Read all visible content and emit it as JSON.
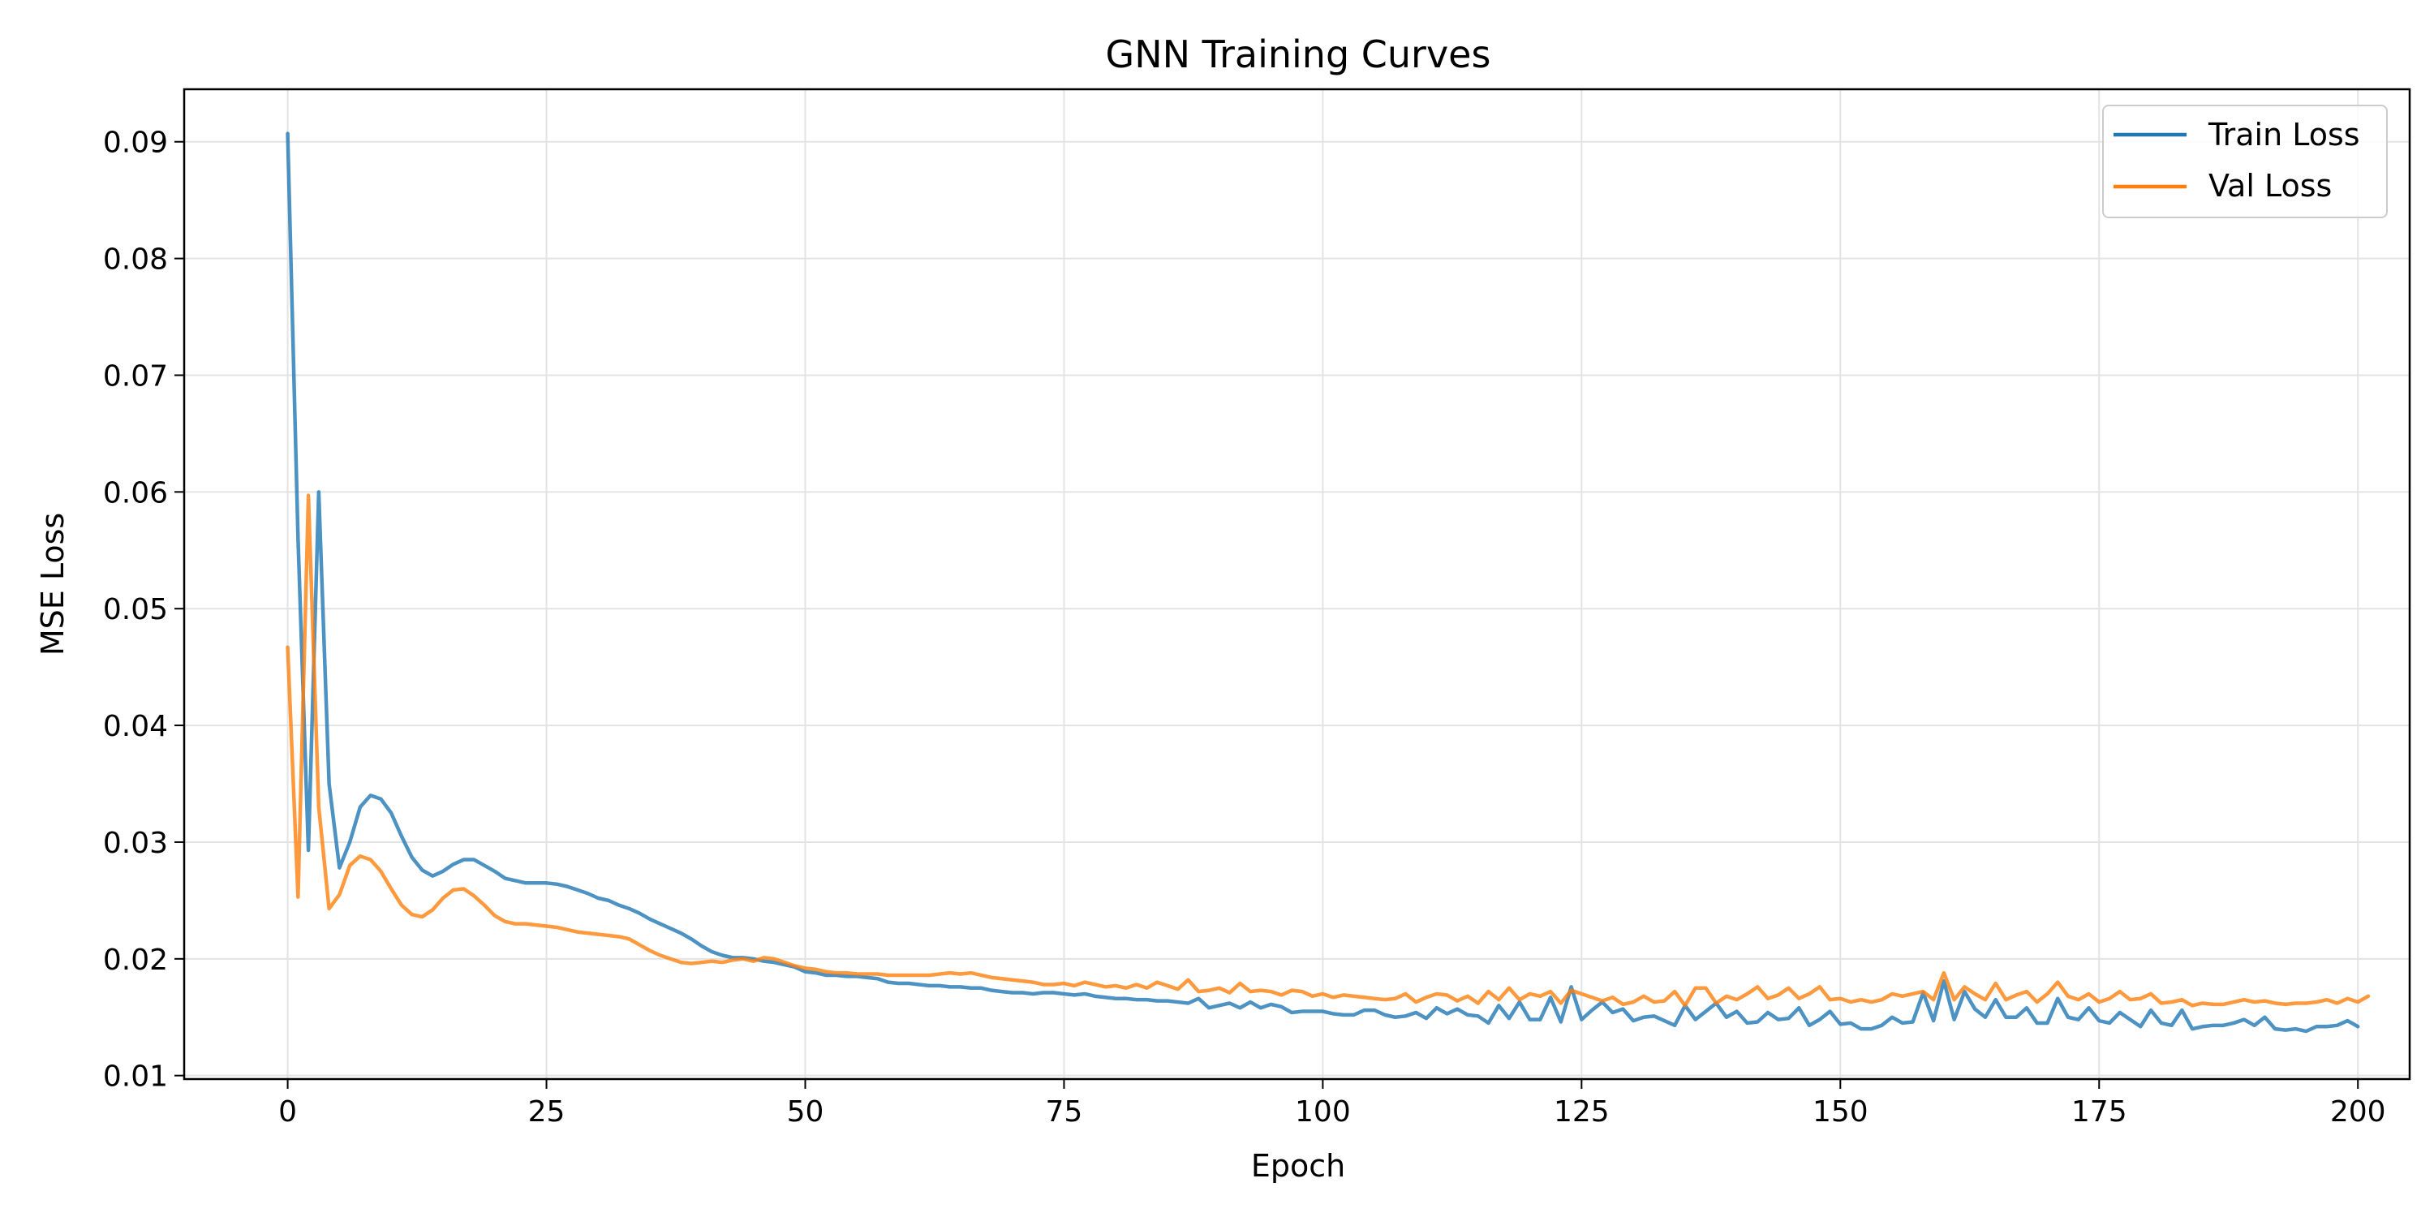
{
  "chart_data": {
    "type": "line",
    "title": "GNN Training Curves",
    "xlabel": "Epoch",
    "ylabel": "MSE Loss",
    "xlim": [
      -10,
      205
    ],
    "ylim": [
      0.0097,
      0.0945
    ],
    "xticks": [
      0,
      25,
      50,
      75,
      100,
      125,
      150,
      175,
      200
    ],
    "yticks": [
      0.01,
      0.02,
      0.03,
      0.04,
      0.05,
      0.06,
      0.07,
      0.08,
      0.09
    ],
    "ytick_labels": [
      "0.01",
      "0.02",
      "0.03",
      "0.04",
      "0.05",
      "0.06",
      "0.07",
      "0.08",
      "0.09"
    ],
    "grid": true,
    "legend_position": "top-right",
    "series": [
      {
        "name": "Train Loss",
        "color": "#1f77b4",
        "x_start": 0,
        "values": [
          0.0907,
          0.056,
          0.0293,
          0.06,
          0.035,
          0.0278,
          0.03,
          0.033,
          0.034,
          0.0337,
          0.0325,
          0.0305,
          0.0287,
          0.0276,
          0.0271,
          0.0275,
          0.0281,
          0.0285,
          0.0285,
          0.028,
          0.0275,
          0.0269,
          0.0267,
          0.0265,
          0.0265,
          0.0265,
          0.0264,
          0.0262,
          0.0259,
          0.0256,
          0.0252,
          0.025,
          0.0246,
          0.0243,
          0.0239,
          0.0234,
          0.023,
          0.0226,
          0.0222,
          0.0217,
          0.0211,
          0.0206,
          0.0203,
          0.0201,
          0.0201,
          0.02,
          0.0198,
          0.0197,
          0.0195,
          0.0193,
          0.0189,
          0.0188,
          0.0186,
          0.0186,
          0.0185,
          0.0185,
          0.0184,
          0.0183,
          0.018,
          0.0179,
          0.0179,
          0.0178,
          0.0177,
          0.0177,
          0.0176,
          0.0176,
          0.0175,
          0.0175,
          0.0173,
          0.0172,
          0.0171,
          0.0171,
          0.017,
          0.0171,
          0.0171,
          0.017,
          0.0169,
          0.017,
          0.0168,
          0.0167,
          0.0166,
          0.0166,
          0.0165,
          0.0165,
          0.0164,
          0.0164,
          0.0163,
          0.0162,
          0.0166,
          0.0158,
          0.016,
          0.0162,
          0.0158,
          0.0163,
          0.0158,
          0.0161,
          0.0159,
          0.0154,
          0.0155,
          0.0155,
          0.0155,
          0.0153,
          0.0152,
          0.0152,
          0.0156,
          0.0156,
          0.0152,
          0.015,
          0.0151,
          0.0154,
          0.0149,
          0.0158,
          0.0153,
          0.0157,
          0.0152,
          0.0151,
          0.0145,
          0.016,
          0.0149,
          0.0163,
          0.0148,
          0.0148,
          0.0167,
          0.0146,
          0.0176,
          0.0148,
          0.0156,
          0.0163,
          0.0154,
          0.0157,
          0.0147,
          0.015,
          0.0151,
          0.0147,
          0.0143,
          0.016,
          0.0148,
          0.0155,
          0.0162,
          0.015,
          0.0155,
          0.0145,
          0.0146,
          0.0154,
          0.0148,
          0.0149,
          0.0158,
          0.0143,
          0.0148,
          0.0155,
          0.0144,
          0.0145,
          0.014,
          0.014,
          0.0143,
          0.015,
          0.0145,
          0.0146,
          0.0171,
          0.0147,
          0.0181,
          0.0148,
          0.0172,
          0.0157,
          0.015,
          0.0165,
          0.015,
          0.015,
          0.0158,
          0.0145,
          0.0145,
          0.0166,
          0.015,
          0.0148,
          0.0158,
          0.0147,
          0.0145,
          0.0154,
          0.0148,
          0.0142,
          0.0156,
          0.0145,
          0.0143,
          0.0156,
          0.014,
          0.0142,
          0.0143,
          0.0143,
          0.0145,
          0.0148,
          0.0143,
          0.015,
          0.014,
          0.0139,
          0.014,
          0.0138,
          0.0142,
          0.0142,
          0.0143,
          0.0147,
          0.0142
        ]
      },
      {
        "name": "Val Loss",
        "color": "#ff7f0e",
        "x_start": 0,
        "values": [
          0.0467,
          0.0253,
          0.0597,
          0.033,
          0.0243,
          0.0255,
          0.028,
          0.0288,
          0.0285,
          0.0275,
          0.026,
          0.0246,
          0.0238,
          0.0236,
          0.0242,
          0.0252,
          0.0259,
          0.026,
          0.0254,
          0.0246,
          0.0237,
          0.0232,
          0.023,
          0.023,
          0.0229,
          0.0228,
          0.0227,
          0.0225,
          0.0223,
          0.0222,
          0.0221,
          0.022,
          0.0219,
          0.0217,
          0.0212,
          0.0207,
          0.0203,
          0.02,
          0.0197,
          0.0196,
          0.0197,
          0.0198,
          0.0197,
          0.0199,
          0.02,
          0.0198,
          0.0201,
          0.02,
          0.0197,
          0.0194,
          0.0192,
          0.0191,
          0.0189,
          0.0188,
          0.0188,
          0.0187,
          0.0187,
          0.0187,
          0.0186,
          0.0186,
          0.0186,
          0.0186,
          0.0186,
          0.0187,
          0.0188,
          0.0187,
          0.0188,
          0.0186,
          0.0184,
          0.0183,
          0.0182,
          0.0181,
          0.018,
          0.0178,
          0.0178,
          0.0179,
          0.0177,
          0.018,
          0.0178,
          0.0176,
          0.0177,
          0.0175,
          0.0178,
          0.0175,
          0.018,
          0.0177,
          0.0174,
          0.0182,
          0.0172,
          0.0173,
          0.0175,
          0.0171,
          0.0179,
          0.0172,
          0.0173,
          0.0172,
          0.0169,
          0.0173,
          0.0172,
          0.0168,
          0.017,
          0.0167,
          0.0169,
          0.0168,
          0.0167,
          0.0166,
          0.0165,
          0.0166,
          0.017,
          0.0163,
          0.0167,
          0.017,
          0.0169,
          0.0164,
          0.0168,
          0.0162,
          0.0172,
          0.0165,
          0.0175,
          0.0165,
          0.017,
          0.0168,
          0.0172,
          0.0162,
          0.0173,
          0.017,
          0.0167,
          0.0164,
          0.0167,
          0.0161,
          0.0163,
          0.0168,
          0.0163,
          0.0164,
          0.0172,
          0.016,
          0.0175,
          0.0175,
          0.0162,
          0.0168,
          0.0165,
          0.017,
          0.0176,
          0.0166,
          0.0169,
          0.0175,
          0.0166,
          0.017,
          0.0176,
          0.0165,
          0.0166,
          0.0163,
          0.0165,
          0.0163,
          0.0165,
          0.017,
          0.0168,
          0.017,
          0.0172,
          0.0165,
          0.0188,
          0.0165,
          0.0176,
          0.017,
          0.0165,
          0.0179,
          0.0165,
          0.0169,
          0.0172,
          0.0163,
          0.017,
          0.018,
          0.0168,
          0.0165,
          0.017,
          0.0163,
          0.0166,
          0.0172,
          0.0165,
          0.0166,
          0.017,
          0.0162,
          0.0163,
          0.0165,
          0.016,
          0.0162,
          0.0161,
          0.0161,
          0.0163,
          0.0165,
          0.0163,
          0.0164,
          0.0162,
          0.0161,
          0.0162,
          0.0162,
          0.0163,
          0.0165,
          0.0162,
          0.0166,
          0.0163,
          0.0168
        ]
      }
    ]
  }
}
